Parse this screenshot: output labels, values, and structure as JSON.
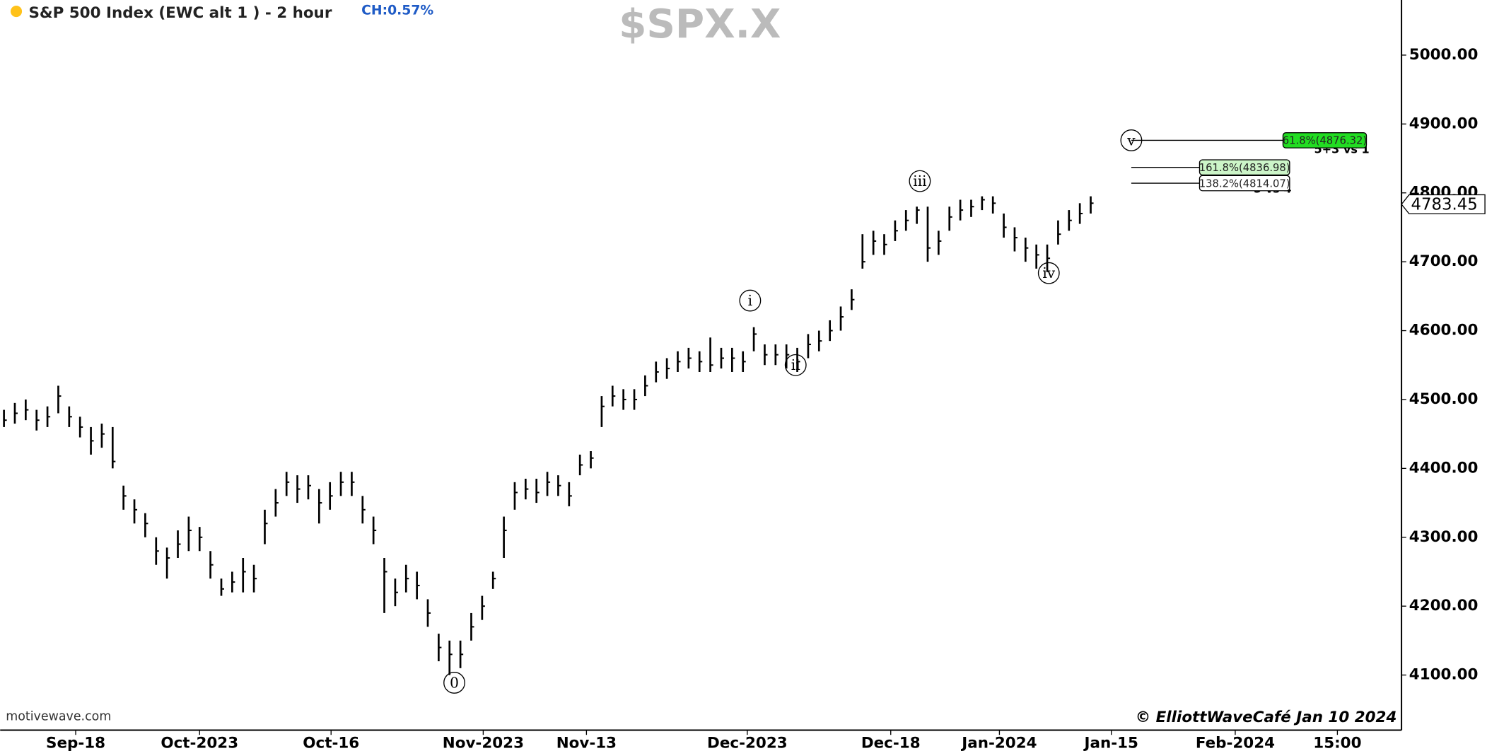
{
  "chart_data": {
    "type": "ohlc",
    "title": "S&P 500 Index (EWC alt 1 ) - 2 hour",
    "change": "CH:0.57%",
    "symbol": "$SPX.X",
    "watermark": "motivewave.com",
    "copyright": "© ElliottWaveCafé Jan 10 2024",
    "color": "#000000",
    "last_price": 4783.45,
    "xlim": [
      -0.35,
      128.6
    ],
    "xticks": [
      {
        "value": 6.6,
        "label": "Sep-18"
      },
      {
        "value": 18.0,
        "label": "Oct-2023"
      },
      {
        "value": 30.1,
        "label": "Oct-16"
      },
      {
        "value": 44.1,
        "label": "Nov-2023"
      },
      {
        "value": 53.6,
        "label": "Nov-13"
      },
      {
        "value": 68.4,
        "label": "Dec-2023"
      },
      {
        "value": 81.6,
        "label": "Dec-18"
      },
      {
        "value": 91.6,
        "label": "Jan-2024"
      },
      {
        "value": 101.9,
        "label": "Jan-15"
      },
      {
        "value": 113.3,
        "label": "Feb-2024"
      },
      {
        "value": 122.7,
        "label": "15:00"
      }
    ],
    "ylim": [
      4020,
      5080
    ],
    "yticks": [
      {
        "value": 4100,
        "label": "4100.00"
      },
      {
        "value": 4200,
        "label": "4200.00"
      },
      {
        "value": 4300,
        "label": "4300.00"
      },
      {
        "value": 4400,
        "label": "4400.00"
      },
      {
        "value": 4500,
        "label": "4500.00"
      },
      {
        "value": 4600,
        "label": "4600.00"
      },
      {
        "value": 4700,
        "label": "4700.00"
      },
      {
        "value": 4800,
        "label": "4800.00"
      },
      {
        "value": 4900,
        "label": "4900.00"
      },
      {
        "value": 5000,
        "label": "5000.00"
      }
    ],
    "high": [
      4485,
      4495,
      4500,
      4485,
      4490,
      4520,
      4490,
      4475,
      4460,
      4465,
      4460,
      4375,
      4355,
      4335,
      4300,
      4285,
      4310,
      4330,
      4315,
      4280,
      4240,
      4250,
      4270,
      4260,
      4340,
      4370,
      4395,
      4390,
      4390,
      4370,
      4380,
      4395,
      4395,
      4360,
      4330,
      4270,
      4240,
      4260,
      4250,
      4210,
      4160,
      4150,
      4150,
      4190,
      4215,
      4250,
      4330,
      4380,
      4385,
      4385,
      4395,
      4390,
      4380,
      4420,
      4425,
      4505,
      4520,
      4515,
      4515,
      4535,
      4555,
      4560,
      4570,
      4575,
      4570,
      4590,
      4575,
      4575,
      4570,
      4605,
      4580,
      4580,
      4580,
      4575,
      4595,
      4600,
      4615,
      4635,
      4660,
      4740,
      4745,
      4740,
      4760,
      4775,
      4780,
      4780,
      4745,
      4780,
      4790,
      4790,
      4795,
      4795,
      4770,
      4750,
      4735,
      4725,
      4725,
      4760,
      4775,
      4785,
      4795
    ],
    "low": [
      4460,
      4465,
      4470,
      4455,
      4460,
      4480,
      4460,
      4445,
      4420,
      4430,
      4400,
      4340,
      4320,
      4300,
      4260,
      4240,
      4270,
      4280,
      4280,
      4240,
      4215,
      4220,
      4220,
      4220,
      4290,
      4330,
      4360,
      4350,
      4355,
      4320,
      4340,
      4360,
      4360,
      4320,
      4290,
      4190,
      4200,
      4220,
      4210,
      4170,
      4120,
      4100,
      4110,
      4150,
      4180,
      4225,
      4270,
      4340,
      4355,
      4350,
      4360,
      4360,
      4345,
      4390,
      4400,
      4460,
      4490,
      4485,
      4485,
      4505,
      4525,
      4530,
      4540,
      4545,
      4540,
      4540,
      4545,
      4540,
      4540,
      4570,
      4550,
      4550,
      4545,
      4540,
      4560,
      4570,
      4585,
      4600,
      4630,
      4690,
      4710,
      4710,
      4730,
      4745,
      4755,
      4700,
      4710,
      4745,
      4760,
      4765,
      4775,
      4770,
      4735,
      4715,
      4700,
      4690,
      4685,
      4725,
      4745,
      4755,
      4770
    ],
    "close": [
      4470,
      4480,
      4485,
      4470,
      4475,
      4505,
      4475,
      4460,
      4440,
      4450,
      4410,
      4360,
      4340,
      4320,
      4280,
      4270,
      4290,
      4310,
      4300,
      4260,
      4225,
      4235,
      4250,
      4240,
      4320,
      4350,
      4380,
      4370,
      4375,
      4350,
      4360,
      4380,
      4380,
      4340,
      4310,
      4250,
      4220,
      4240,
      4230,
      4190,
      4140,
      4130,
      4130,
      4170,
      4200,
      4240,
      4310,
      4365,
      4370,
      4365,
      4380,
      4375,
      4360,
      4405,
      4415,
      4490,
      4505,
      4500,
      4500,
      4520,
      4540,
      4545,
      4555,
      4560,
      4555,
      4550,
      4560,
      4560,
      4555,
      4595,
      4565,
      4565,
      4565,
      4555,
      4580,
      4585,
      4600,
      4620,
      4645,
      4700,
      4730,
      4725,
      4745,
      4760,
      4775,
      4720,
      4730,
      4765,
      4775,
      4780,
      4790,
      4785,
      4750,
      4735,
      4720,
      4710,
      4705,
      4740,
      4760,
      4770,
      4785
    ],
    "wave_labels": [
      "0",
      "i",
      "ii",
      "iii",
      "iv",
      "v"
    ],
    "fib_levels": [
      {
        "value": 4876.32,
        "label": "61.8%(4876.32)",
        "color": "#22dd22"
      },
      {
        "value": 4836.98,
        "label": "161.8%(4836.98)",
        "color": "#ccf5c8"
      },
      {
        "value": 4814.07,
        "label": "138.2%(4814.07)",
        "color": "#ffffff"
      }
    ],
    "fib_notes": [
      "5+3 vs 1",
      "5 vs 4"
    ]
  }
}
